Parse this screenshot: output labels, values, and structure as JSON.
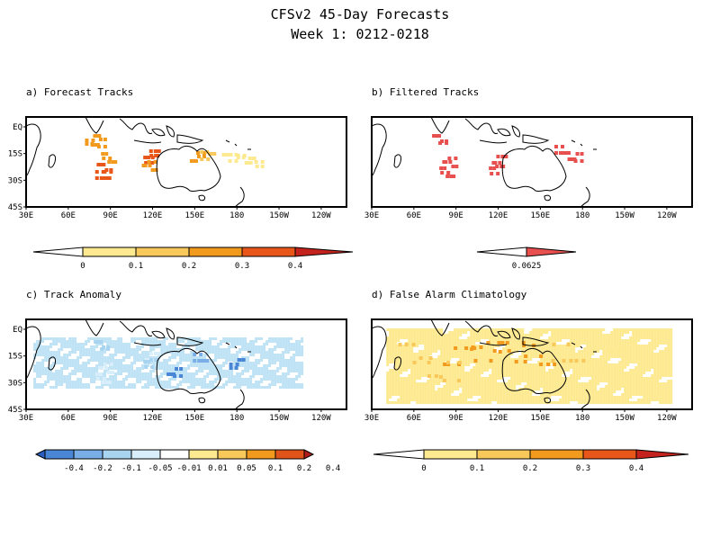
{
  "page": {
    "title": "CFSv2 45-Day Forecasts",
    "subtitle": "Week 1: 0212-0218"
  },
  "chart_data": [
    {
      "id": "a",
      "type": "heatmap",
      "title": "a) Forecast Tracks",
      "x_ticks": [
        "30E",
        "60E",
        "90E",
        "120E",
        "150E",
        "180",
        "150W",
        "120W"
      ],
      "y_ticks": [
        "EQ",
        "15S",
        "30S",
        "45S"
      ],
      "xlim": [
        30,
        250
      ],
      "ylim": [
        -45,
        5
      ],
      "colorbar": {
        "labels": [
          "0",
          "0.1",
          "0.2",
          "0.3",
          "0.4"
        ],
        "colors": [
          "#ffffff",
          "#fde990",
          "#f9c85a",
          "#f29a1e",
          "#e8561a",
          "#c4221c"
        ]
      },
      "blobs": [
        {
          "lon": 117,
          "lat": -15,
          "value": 0.38
        },
        {
          "lon": 116,
          "lat": -18,
          "value": 0.3
        },
        {
          "lon": 115,
          "lat": -22,
          "value": 0.2
        },
        {
          "lon": 87,
          "lat": -18,
          "value": 0.28
        },
        {
          "lon": 84,
          "lat": -24,
          "value": 0.32
        },
        {
          "lon": 83,
          "lat": -28,
          "value": 0.3
        },
        {
          "lon": 80,
          "lat": -10,
          "value": 0.22
        },
        {
          "lon": 76,
          "lat": -8,
          "value": 0.2
        },
        {
          "lon": 148,
          "lat": -17,
          "value": 0.22
        },
        {
          "lon": 155,
          "lat": -16,
          "value": 0.12
        },
        {
          "lon": 170,
          "lat": -17,
          "value": 0.08
        },
        {
          "lon": 180,
          "lat": -18,
          "value": 0.06
        },
        {
          "lon": 188,
          "lat": -20,
          "value": 0.05
        }
      ]
    },
    {
      "id": "b",
      "type": "heatmap",
      "title": "b) Filtered Tracks",
      "x_ticks": [
        "30E",
        "60E",
        "90E",
        "120E",
        "150E",
        "180",
        "150W",
        "120W"
      ],
      "y_ticks": [],
      "xlim": [
        30,
        250
      ],
      "ylim": [
        -45,
        5
      ],
      "colorbar": {
        "labels": [
          "0.0625"
        ],
        "colors": [
          "#ffffff",
          "#e85050"
        ]
      },
      "blobs": [
        {
          "lon": 118,
          "lat": -18,
          "value": 0.0625
        },
        {
          "lon": 116,
          "lat": -24,
          "value": 0.0625
        },
        {
          "lon": 84,
          "lat": -20,
          "value": 0.0625
        },
        {
          "lon": 82,
          "lat": -26,
          "value": 0.0625
        },
        {
          "lon": 77,
          "lat": -8,
          "value": 0.0625
        },
        {
          "lon": 161,
          "lat": -14,
          "value": 0.0625
        },
        {
          "lon": 170,
          "lat": -18,
          "value": 0.0625
        }
      ]
    },
    {
      "id": "c",
      "type": "heatmap",
      "title": "c) Track Anomaly",
      "x_ticks": [
        "30E",
        "60E",
        "90E",
        "120E",
        "150E",
        "180",
        "150W",
        "120W"
      ],
      "y_ticks": [
        "EQ",
        "15S",
        "30S",
        "45S"
      ],
      "xlim": [
        30,
        250
      ],
      "ylim": [
        -45,
        5
      ],
      "colorbar": {
        "labels": [
          "-0.4",
          "-0.2",
          "-0.1",
          "-0.05",
          "-0.01",
          "0.01",
          "0.05",
          "0.1",
          "0.2",
          "0.4"
        ],
        "colors": [
          "#2a5fc2",
          "#4a86d6",
          "#79aee6",
          "#a8d4f0",
          "#d8eefa",
          "#ffffff",
          "#fde990",
          "#f9c85a",
          "#f29a1e",
          "#e0541a",
          "#b01c1c"
        ]
      },
      "blobs": [
        {
          "lon": 117,
          "lat": -15,
          "value": 0.3
        },
        {
          "lon": 116,
          "lat": -19,
          "value": 0.25
        },
        {
          "lon": 85,
          "lat": -22,
          "value": 0.3
        },
        {
          "lon": 83,
          "lat": -28,
          "value": 0.35
        },
        {
          "lon": 82,
          "lat": -10,
          "value": 0.2
        },
        {
          "lon": 150,
          "lat": -17,
          "value": 0.15
        },
        {
          "lon": 132,
          "lat": -25,
          "value": 0.08
        },
        {
          "lon": 175,
          "lat": -20,
          "value": 0.06
        }
      ],
      "negative_region": [
        [
          -5,
          35
        ],
        [
          -33,
          220
        ]
      ]
    },
    {
      "id": "d",
      "type": "heatmap",
      "title": "d) False Alarm Climatology",
      "x_ticks": [
        "30E",
        "60E",
        "90E",
        "120E",
        "150E",
        "180",
        "150W",
        "120W"
      ],
      "y_ticks": [],
      "xlim": [
        30,
        250
      ],
      "ylim": [
        -45,
        5
      ],
      "colorbar": {
        "labels": [
          "0",
          "0.1",
          "0.2",
          "0.3",
          "0.4"
        ],
        "colors": [
          "#ffffff",
          "#fde990",
          "#f9c85a",
          "#f29a1e",
          "#e8561a",
          "#c4221c"
        ]
      },
      "blobs": [
        {
          "lon": 90,
          "lat": -14,
          "value": 0.28
        },
        {
          "lon": 110,
          "lat": -12,
          "value": 0.25
        },
        {
          "lon": 125,
          "lat": -13,
          "value": 0.24
        },
        {
          "lon": 145,
          "lat": -15,
          "value": 0.22
        },
        {
          "lon": 60,
          "lat": -15,
          "value": 0.18
        },
        {
          "lon": 165,
          "lat": -15,
          "value": 0.15
        },
        {
          "lon": 80,
          "lat": -25,
          "value": 0.14
        },
        {
          "lon": 190,
          "lat": -18,
          "value": 0.08
        }
      ]
    }
  ]
}
